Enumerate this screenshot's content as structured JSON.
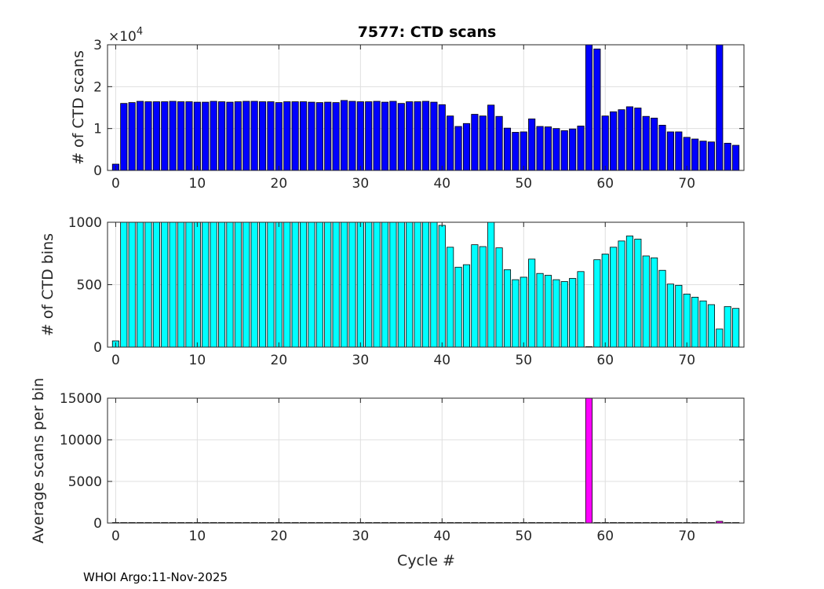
{
  "title": "7577: CTD scans",
  "xlabel": "Cycle #",
  "footer": "WHOI Argo:11-Nov-2025",
  "chart_data": [
    {
      "type": "bar",
      "panel": "top",
      "ylabel": "# of CTD scans",
      "exponent_label": "×10",
      "exponent_power": "4",
      "color": "#0000ff",
      "xlim": [
        -1,
        77
      ],
      "ylim": [
        0,
        30000
      ],
      "xticks": [
        0,
        10,
        20,
        30,
        40,
        50,
        60,
        70
      ],
      "yticks": [
        0,
        10000,
        20000,
        30000
      ],
      "ytick_labels": [
        "0",
        "1",
        "2",
        "3"
      ],
      "grid": true,
      "x": [
        0,
        1,
        2,
        3,
        4,
        5,
        6,
        7,
        8,
        9,
        10,
        11,
        12,
        13,
        14,
        15,
        16,
        17,
        18,
        19,
        20,
        21,
        22,
        23,
        24,
        25,
        26,
        27,
        28,
        29,
        30,
        31,
        32,
        33,
        34,
        35,
        36,
        37,
        38,
        39,
        40,
        41,
        42,
        43,
        44,
        45,
        46,
        47,
        48,
        49,
        50,
        51,
        52,
        53,
        54,
        55,
        56,
        57,
        58,
        59,
        60,
        61,
        62,
        63,
        64,
        65,
        66,
        67,
        68,
        69,
        70,
        71,
        72,
        73,
        74,
        75,
        76
      ],
      "values": [
        1500,
        16000,
        16200,
        16500,
        16400,
        16400,
        16400,
        16500,
        16400,
        16400,
        16300,
        16300,
        16500,
        16400,
        16300,
        16400,
        16500,
        16500,
        16400,
        16400,
        16200,
        16400,
        16400,
        16400,
        16300,
        16200,
        16300,
        16200,
        16700,
        16500,
        16400,
        16400,
        16500,
        16300,
        16500,
        16000,
        16400,
        16400,
        16500,
        16300,
        15700,
        13000,
        10500,
        11200,
        13400,
        13000,
        15600,
        12900,
        10100,
        9100,
        9200,
        12300,
        10500,
        10400,
        10000,
        9500,
        9900,
        10600,
        30000,
        29000,
        13000,
        14000,
        14500,
        15200,
        14900,
        12900,
        12500,
        10800,
        9200,
        9200,
        7900,
        7500,
        7000,
        6800,
        30000,
        6500,
        6000
      ]
    },
    {
      "type": "bar",
      "panel": "middle",
      "ylabel": "# of CTD bins",
      "color": "#00ffff",
      "xlim": [
        -1,
        77
      ],
      "ylim": [
        0,
        1000
      ],
      "xticks": [
        0,
        10,
        20,
        30,
        40,
        50,
        60,
        70
      ],
      "yticks": [
        0,
        500,
        1000
      ],
      "ytick_labels": [
        "0",
        "500",
        "1000"
      ],
      "grid": true,
      "x": [
        0,
        1,
        2,
        3,
        4,
        5,
        6,
        7,
        8,
        9,
        10,
        11,
        12,
        13,
        14,
        15,
        16,
        17,
        18,
        19,
        20,
        21,
        22,
        23,
        24,
        25,
        26,
        27,
        28,
        29,
        30,
        31,
        32,
        33,
        34,
        35,
        36,
        37,
        38,
        39,
        40,
        41,
        42,
        43,
        44,
        45,
        46,
        47,
        48,
        49,
        50,
        51,
        52,
        53,
        54,
        55,
        56,
        57,
        58,
        59,
        60,
        61,
        62,
        63,
        64,
        65,
        66,
        67,
        68,
        69,
        70,
        71,
        72,
        73,
        74,
        75,
        76
      ],
      "values": [
        50,
        1000,
        1000,
        1000,
        1000,
        1000,
        1000,
        1000,
        1000,
        1000,
        1000,
        1000,
        1000,
        1000,
        1000,
        1000,
        1000,
        1000,
        1000,
        1000,
        1000,
        1000,
        1000,
        1000,
        1000,
        1000,
        1000,
        1000,
        1000,
        1000,
        1000,
        1000,
        1000,
        1000,
        1000,
        1000,
        1000,
        1000,
        1000,
        1000,
        975,
        800,
        640,
        660,
        820,
        805,
        1000,
        795,
        620,
        540,
        560,
        705,
        590,
        575,
        540,
        525,
        550,
        605,
        0,
        700,
        745,
        800,
        850,
        890,
        865,
        730,
        715,
        615,
        505,
        495,
        425,
        400,
        370,
        340,
        145,
        325,
        310
      ]
    },
    {
      "type": "bar",
      "panel": "bottom",
      "ylabel": "Average scans per bin",
      "color": "#ff00ff",
      "xlim": [
        -1,
        77
      ],
      "ylim": [
        0,
        15000
      ],
      "xticks": [
        0,
        10,
        20,
        30,
        40,
        50,
        60,
        70
      ],
      "yticks": [
        0,
        5000,
        10000,
        15000
      ],
      "ytick_labels": [
        "0",
        "5000",
        "10000",
        "15000"
      ],
      "grid": true,
      "x": [
        0,
        1,
        2,
        3,
        4,
        5,
        6,
        7,
        8,
        9,
        10,
        11,
        12,
        13,
        14,
        15,
        16,
        17,
        18,
        19,
        20,
        21,
        22,
        23,
        24,
        25,
        26,
        27,
        28,
        29,
        30,
        31,
        32,
        33,
        34,
        35,
        36,
        37,
        38,
        39,
        40,
        41,
        42,
        43,
        44,
        45,
        46,
        47,
        48,
        49,
        50,
        51,
        52,
        53,
        54,
        55,
        56,
        57,
        58,
        59,
        60,
        61,
        62,
        63,
        64,
        65,
        66,
        67,
        68,
        69,
        70,
        71,
        72,
        73,
        74,
        75,
        76
      ],
      "values": [
        30,
        16,
        16,
        16,
        16,
        16,
        16,
        16,
        16,
        16,
        16,
        16,
        16,
        16,
        16,
        16,
        16,
        16,
        16,
        16,
        16,
        16,
        16,
        16,
        16,
        16,
        16,
        16,
        17,
        16,
        16,
        16,
        17,
        16,
        16,
        16,
        16,
        16,
        16,
        16,
        16,
        16,
        16,
        17,
        16,
        16,
        16,
        16,
        16,
        17,
        16,
        17,
        18,
        18,
        19,
        18,
        18,
        18,
        15000,
        41,
        17,
        17,
        17,
        17,
        17,
        18,
        17,
        18,
        18,
        19,
        19,
        19,
        19,
        20,
        207,
        20,
        19
      ]
    }
  ]
}
